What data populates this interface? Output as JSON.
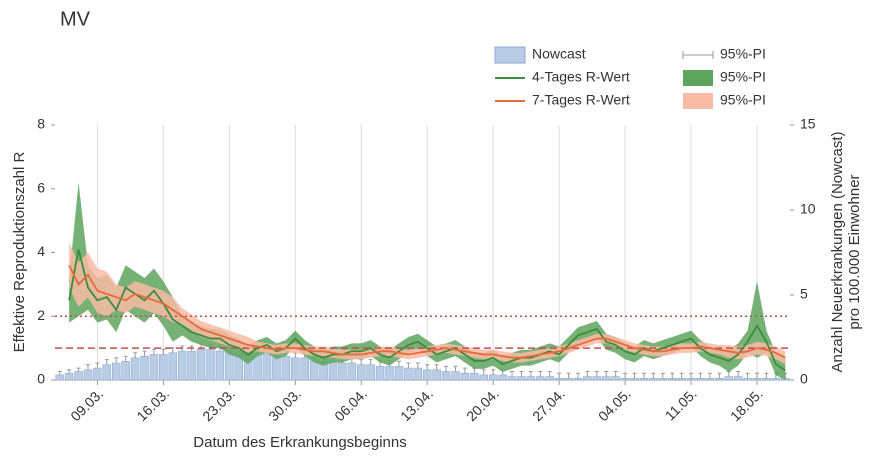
{
  "chart_data": {
    "type": "combo",
    "title": "MV",
    "xlabel": "Datum des Erkrankungsbeginns",
    "ylabel": "Effektive Reproduktionszahl R",
    "y2label": [
      "Anzahl Neuerkrankungen (Nowcast)",
      "pro 100.000 Einwohner"
    ],
    "categories": [
      null,
      null,
      null,
      null,
      "09.03.",
      null,
      null,
      null,
      null,
      null,
      null,
      "16.03.",
      null,
      null,
      null,
      null,
      null,
      null,
      "23.03.",
      null,
      null,
      null,
      null,
      null,
      null,
      "30.03.",
      null,
      null,
      null,
      null,
      null,
      null,
      "06.04.",
      null,
      null,
      null,
      null,
      null,
      null,
      "13.04.",
      null,
      null,
      null,
      null,
      null,
      null,
      "20.04.",
      null,
      null,
      null,
      null,
      null,
      null,
      "27.04.",
      null,
      null,
      null,
      null,
      null,
      null,
      "04.05.",
      null,
      null,
      null,
      null,
      null,
      null,
      "11.05.",
      null,
      null,
      null,
      null,
      null,
      null,
      "18.05.",
      null,
      null,
      null
    ],
    "ylim": [
      0,
      8
    ],
    "yticks": [
      0,
      2,
      4,
      6,
      8
    ],
    "y2lim": [
      0,
      15
    ],
    "y2ticks": [
      0,
      5,
      10,
      15
    ],
    "grid": true,
    "ref_lines": [
      {
        "value": 1,
        "style": "dashed",
        "color": "#c0504d"
      },
      {
        "value": 2,
        "style": "dotted",
        "color": "#c0504d"
      }
    ],
    "series": [
      {
        "name": "Nowcast",
        "kind": "bar",
        "axis": "y2",
        "color": "#b8cce4",
        "interval_name": "95%-PI",
        "interval_color": "#999999",
        "values": [
          0.3,
          0.4,
          0.5,
          0.6,
          0.7,
          0.9,
          1.0,
          1.1,
          1.3,
          1.4,
          1.5,
          1.5,
          1.6,
          1.7,
          1.7,
          1.8,
          1.8,
          1.7,
          1.7,
          1.6,
          1.6,
          1.5,
          1.5,
          1.4,
          1.4,
          1.3,
          1.3,
          1.2,
          1.1,
          1.1,
          1.0,
          1.0,
          0.9,
          0.9,
          0.8,
          0.8,
          0.8,
          0.7,
          0.7,
          0.6,
          0.6,
          0.5,
          0.5,
          0.4,
          0.4,
          0.3,
          0.3,
          0.3,
          0.2,
          0.2,
          0.2,
          0.2,
          0.2,
          0.1,
          0.1,
          0.1,
          0.2,
          0.2,
          0.2,
          0.2,
          0.1,
          0.1,
          0.1,
          0.1,
          0.1,
          0.1,
          0.1,
          0.1,
          0.1,
          0.1,
          0.1,
          0.2,
          0.2,
          0.1,
          0.1,
          0.1,
          0.1,
          0.1
        ],
        "error": [
          0.2,
          0.2,
          0.2,
          0.3,
          0.3,
          0.3,
          0.3,
          0.3,
          0.3,
          0.3,
          0.3,
          0.3,
          0.3,
          0.3,
          0.3,
          0.3,
          0.3,
          0.3,
          0.3,
          0.3,
          0.3,
          0.3,
          0.3,
          0.3,
          0.3,
          0.3,
          0.3,
          0.3,
          0.3,
          0.3,
          0.3,
          0.3,
          0.3,
          0.3,
          0.3,
          0.3,
          0.3,
          0.3,
          0.3,
          0.3,
          0.3,
          0.3,
          0.3,
          0.3,
          0.3,
          0.3,
          0.3,
          0.3,
          0.3,
          0.3,
          0.3,
          0.3,
          0.3,
          0.3,
          0.3,
          0.3,
          0.3,
          0.3,
          0.3,
          0.3,
          0.3,
          0.3,
          0.3,
          0.3,
          0.3,
          0.3,
          0.3,
          0.3,
          0.3,
          0.3,
          0.3,
          0.3,
          0.3,
          0.3,
          0.3,
          0.3,
          0.3,
          0.3
        ]
      },
      {
        "name": "4-Tages R-Wert",
        "kind": "line",
        "color": "#3c8c3c",
        "interval_name": "95%-PI",
        "interval_color": "#5ea35e",
        "values": [
          null,
          2.5,
          4.1,
          2.9,
          2.5,
          2.6,
          2.2,
          2.9,
          2.7,
          2.5,
          2.8,
          2.4,
          1.9,
          1.7,
          1.5,
          1.4,
          1.3,
          1.3,
          1.1,
          1.0,
          0.8,
          1.0,
          1.1,
          0.9,
          1.0,
          1.3,
          1.0,
          0.8,
          0.7,
          0.8,
          0.8,
          0.9,
          0.9,
          1.0,
          0.8,
          0.7,
          0.9,
          1.1,
          1.2,
          1.0,
          0.8,
          0.9,
          1.0,
          0.8,
          0.6,
          0.6,
          0.7,
          0.5,
          0.6,
          0.7,
          0.7,
          0.8,
          0.9,
          0.8,
          1.1,
          1.4,
          1.5,
          1.6,
          1.2,
          1.1,
          0.9,
          0.8,
          1.0,
          0.9,
          1.0,
          1.1,
          1.2,
          1.3,
          1.0,
          0.8,
          0.7,
          0.6,
          0.8,
          1.2,
          1.7,
          1.2,
          0.5,
          0.3
        ],
        "lower": [
          null,
          1.8,
          2.0,
          2.2,
          1.8,
          1.9,
          1.5,
          2.2,
          2.0,
          1.8,
          2.1,
          1.7,
          1.2,
          1.4,
          1.2,
          1.1,
          1.0,
          1.0,
          0.8,
          0.7,
          0.5,
          0.75,
          0.85,
          0.65,
          0.75,
          1.05,
          0.75,
          0.55,
          0.45,
          0.55,
          0.55,
          0.65,
          0.65,
          0.75,
          0.55,
          0.45,
          0.65,
          0.85,
          0.95,
          0.75,
          0.55,
          0.65,
          0.75,
          0.55,
          0.35,
          0.35,
          0.45,
          0.25,
          0.35,
          0.45,
          0.45,
          0.55,
          0.65,
          0.55,
          0.85,
          1.15,
          1.25,
          1.35,
          0.95,
          0.85,
          0.65,
          0.55,
          0.75,
          0.65,
          0.75,
          0.85,
          0.95,
          1.05,
          0.75,
          0.55,
          0.45,
          0.25,
          0.45,
          0.85,
          0.7,
          0.85,
          0.15,
          0.0
        ],
        "upper": [
          null,
          3.2,
          6.2,
          3.6,
          3.2,
          3.3,
          2.9,
          3.6,
          3.4,
          3.2,
          3.5,
          3.1,
          2.6,
          2.0,
          1.8,
          1.7,
          1.6,
          1.6,
          1.4,
          1.3,
          1.1,
          1.25,
          1.35,
          1.15,
          1.25,
          1.55,
          1.25,
          1.05,
          0.95,
          1.05,
          1.05,
          1.15,
          1.15,
          1.25,
          1.05,
          0.95,
          1.15,
          1.35,
          1.45,
          1.25,
          1.05,
          1.15,
          1.25,
          1.05,
          0.85,
          0.85,
          0.95,
          0.75,
          0.85,
          0.95,
          0.95,
          1.05,
          1.15,
          1.05,
          1.35,
          1.65,
          1.75,
          1.85,
          1.45,
          1.35,
          1.15,
          1.05,
          1.25,
          1.15,
          1.25,
          1.35,
          1.45,
          1.55,
          1.25,
          1.05,
          0.95,
          0.95,
          1.15,
          1.55,
          3.1,
          1.55,
          0.85,
          0.65
        ]
      },
      {
        "name": "7-Tages R-Wert",
        "kind": "line",
        "color": "#e8693a",
        "interval_name": "95%-PI",
        "interval_color": "#f9bba5",
        "values": [
          null,
          3.6,
          3.0,
          3.3,
          2.8,
          2.7,
          2.6,
          2.5,
          2.7,
          2.6,
          2.5,
          2.4,
          2.2,
          2.0,
          1.8,
          1.6,
          1.5,
          1.4,
          1.3,
          1.2,
          1.1,
          1.05,
          1.0,
          0.95,
          1.0,
          1.0,
          0.95,
          0.9,
          0.9,
          0.85,
          0.8,
          0.8,
          0.8,
          0.85,
          0.9,
          0.9,
          0.85,
          0.8,
          0.85,
          0.9,
          0.95,
          1.0,
          0.95,
          0.9,
          0.85,
          0.8,
          0.8,
          0.75,
          0.7,
          0.7,
          0.75,
          0.8,
          0.85,
          0.9,
          1.0,
          1.1,
          1.2,
          1.3,
          1.3,
          1.2,
          1.1,
          1.0,
          0.95,
          0.9,
          0.9,
          0.95,
          1.0,
          1.0,
          1.05,
          1.0,
          0.95,
          0.9,
          0.85,
          0.9,
          1.0,
          0.95,
          0.85,
          0.7
        ],
        "lower": [
          null,
          2.9,
          2.3,
          2.6,
          2.1,
          2.0,
          2.2,
          2.1,
          2.3,
          2.2,
          2.1,
          2.0,
          1.8,
          1.75,
          1.55,
          1.35,
          1.25,
          1.15,
          1.05,
          0.95,
          0.85,
          0.9,
          0.85,
          0.8,
          0.85,
          0.85,
          0.8,
          0.75,
          0.75,
          0.7,
          0.65,
          0.65,
          0.65,
          0.7,
          0.75,
          0.75,
          0.7,
          0.65,
          0.7,
          0.75,
          0.8,
          0.85,
          0.8,
          0.75,
          0.7,
          0.65,
          0.65,
          0.6,
          0.55,
          0.55,
          0.6,
          0.65,
          0.7,
          0.75,
          0.85,
          0.95,
          1.05,
          1.15,
          1.15,
          1.05,
          0.95,
          0.85,
          0.8,
          0.75,
          0.75,
          0.8,
          0.85,
          0.85,
          0.9,
          0.85,
          0.8,
          0.7,
          0.65,
          0.7,
          0.8,
          0.75,
          0.65,
          0.5
        ],
        "upper": [
          null,
          4.3,
          3.7,
          4.0,
          3.5,
          3.4,
          3.0,
          2.9,
          3.1,
          3.0,
          2.9,
          2.8,
          2.6,
          2.25,
          2.05,
          1.85,
          1.75,
          1.65,
          1.55,
          1.45,
          1.35,
          1.2,
          1.15,
          1.1,
          1.15,
          1.15,
          1.1,
          1.05,
          1.05,
          1.0,
          0.95,
          0.95,
          0.95,
          1.0,
          1.05,
          1.05,
          1.0,
          0.95,
          1.0,
          1.05,
          1.1,
          1.15,
          1.1,
          1.05,
          1.0,
          0.95,
          0.95,
          0.9,
          0.85,
          0.85,
          0.9,
          0.95,
          1.0,
          1.05,
          1.15,
          1.25,
          1.35,
          1.45,
          1.45,
          1.35,
          1.25,
          1.15,
          1.1,
          1.05,
          1.05,
          1.1,
          1.15,
          1.15,
          1.2,
          1.15,
          1.1,
          1.1,
          1.05,
          1.1,
          1.2,
          1.15,
          1.05,
          0.9
        ]
      }
    ]
  }
}
